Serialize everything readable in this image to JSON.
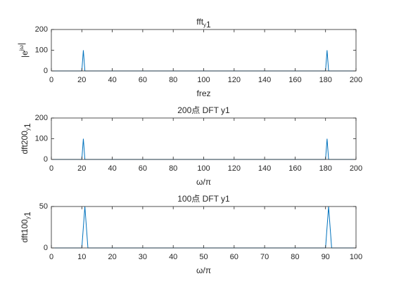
{
  "chart_data": [
    {
      "type": "line",
      "title": "fft_y1",
      "xlabel": "frez",
      "ylabel": "|e^{jω}|",
      "x": [
        1,
        20,
        21,
        22,
        180,
        181,
        182,
        200
      ],
      "values": [
        0,
        0,
        100,
        0,
        0,
        100,
        0,
        0
      ],
      "color": "#0072bd",
      "xlim": [
        0,
        200
      ],
      "xticks": [
        0,
        20,
        40,
        60,
        80,
        100,
        120,
        140,
        160,
        180,
        200
      ],
      "ylim": [
        0,
        200
      ],
      "yticks": [
        0,
        100,
        200
      ]
    },
    {
      "type": "line",
      "title": "200点 DFT y1",
      "xlabel": "ω/π",
      "ylabel": "dft200_y1",
      "x": [
        1,
        20,
        21,
        22,
        180,
        181,
        182,
        200
      ],
      "values": [
        0,
        0,
        100,
        0,
        0,
        100,
        0,
        0
      ],
      "color": "#0072bd",
      "xlim": [
        0,
        200
      ],
      "xticks": [
        0,
        20,
        40,
        60,
        80,
        100,
        120,
        140,
        160,
        180,
        200
      ],
      "ylim": [
        0,
        200
      ],
      "yticks": [
        0,
        100,
        200
      ]
    },
    {
      "type": "line",
      "title": "100点 DFT y1",
      "xlabel": "ω/π",
      "ylabel": "dft100_y1",
      "x": [
        1,
        10,
        11,
        12,
        90,
        91,
        92,
        100
      ],
      "values": [
        0,
        0,
        50,
        0,
        0,
        50,
        0,
        0
      ],
      "color": "#0072bd",
      "xlim": [
        0,
        100
      ],
      "xticks": [
        0,
        10,
        20,
        30,
        40,
        50,
        60,
        70,
        80,
        90,
        100
      ],
      "ylim": [
        0,
        50
      ],
      "yticks": [
        0,
        50
      ]
    }
  ]
}
